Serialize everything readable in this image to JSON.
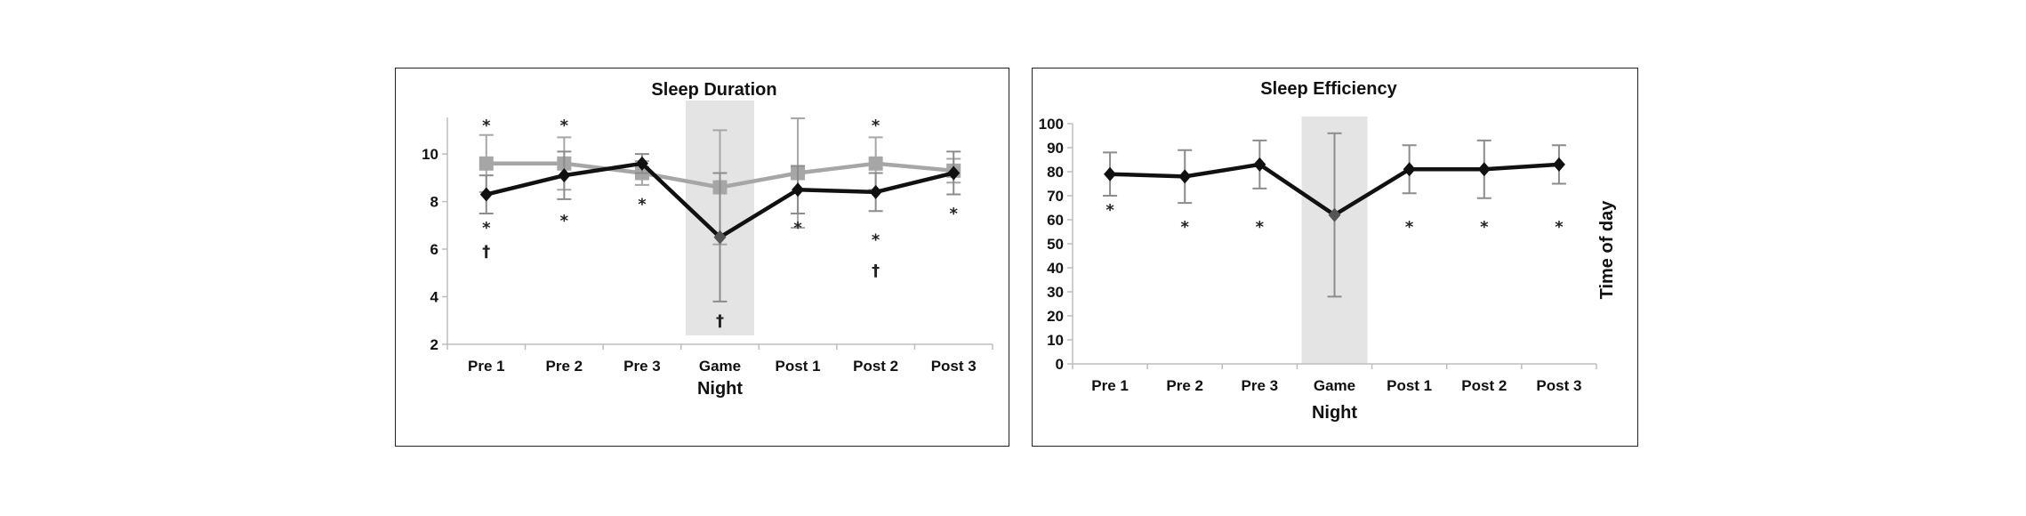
{
  "chart_data": [
    {
      "type": "line",
      "title": "Sleep Duration",
      "xlabel": "Night",
      "ylabel": "",
      "categories": [
        "Pre 1",
        "Pre 2",
        "Pre 3",
        "Game",
        "Post 1",
        "Post 2",
        "Post 3"
      ],
      "yticks": [
        "2",
        "4",
        "6",
        "8",
        "10"
      ],
      "ylim": [
        2,
        11.5
      ],
      "shaded_category": "Game",
      "series": [
        {
          "marker": "square",
          "color": "#a6a6a6",
          "values": [
            9.6,
            9.6,
            9.2,
            8.6,
            9.2,
            9.6,
            9.3
          ],
          "error": [
            1.2,
            1.1,
            0.5,
            2.4,
            2.3,
            1.1,
            0.5
          ]
        },
        {
          "marker": "diamond",
          "color": "#111111",
          "values": [
            8.3,
            9.1,
            9.6,
            6.5,
            8.5,
            8.4,
            9.2
          ],
          "error": [
            0.8,
            1.0,
            0.4,
            2.7,
            1.0,
            0.8,
            0.9
          ]
        }
      ],
      "annotations": [
        {
          "category": "Pre 1",
          "text": "*",
          "y": 11.2
        },
        {
          "category": "Pre 2",
          "text": "*",
          "y": 11.2
        },
        {
          "category": "Post 2",
          "text": "*",
          "y": 11.2
        },
        {
          "category": "Pre 1",
          "text": "*",
          "y": 6.9
        },
        {
          "category": "Pre 1",
          "text": "†",
          "y": 5.9
        },
        {
          "category": "Pre 2",
          "text": "*",
          "y": 7.2
        },
        {
          "category": "Pre 3",
          "text": "*",
          "y": 7.9
        },
        {
          "category": "Game",
          "text": "†",
          "y": 3.0
        },
        {
          "category": "Post 1",
          "text": "*",
          "y": 6.9
        },
        {
          "category": "Post 2",
          "text": "*",
          "y": 6.4
        },
        {
          "category": "Post 2",
          "text": "†",
          "y": 5.1
        },
        {
          "category": "Post 3",
          "text": "*",
          "y": 7.5
        }
      ]
    },
    {
      "type": "line",
      "title": "Sleep Efficiency",
      "xlabel": "Night",
      "ylabel": "Time of day",
      "categories": [
        "Pre 1",
        "Pre 2",
        "Pre 3",
        "Game",
        "Post 1",
        "Post 2",
        "Post 3"
      ],
      "yticks": [
        "0",
        "10",
        "20",
        "30",
        "40",
        "50",
        "60",
        "70",
        "80",
        "90",
        "100"
      ],
      "ylim": [
        0,
        100
      ],
      "shaded_category": "Game",
      "series": [
        {
          "marker": "diamond",
          "color": "#111111",
          "values": [
            79,
            78,
            83,
            62,
            81,
            81,
            83
          ],
          "error": [
            9,
            11,
            10,
            34,
            10,
            12,
            8
          ]
        }
      ],
      "annotations": [
        {
          "category": "Pre 1",
          "text": "*",
          "y": 64
        },
        {
          "category": "Pre 2",
          "text": "*",
          "y": 57
        },
        {
          "category": "Pre 3",
          "text": "*",
          "y": 57
        },
        {
          "category": "Post 1",
          "text": "*",
          "y": 57
        },
        {
          "category": "Post 2",
          "text": "*",
          "y": 57
        },
        {
          "category": "Post 3",
          "text": "*",
          "y": 57
        }
      ]
    }
  ]
}
